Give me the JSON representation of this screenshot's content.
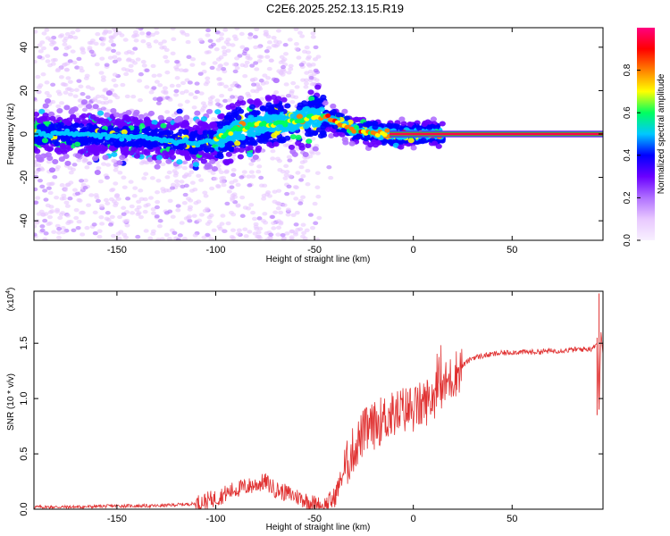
{
  "title": "C2E6.2025.252.13.15.R19",
  "chart_data": [
    {
      "type": "heatmap",
      "title": "C2E6.2025.252.13.15.R19",
      "xlabel": "Height of straight line (km)",
      "ylabel": "Frequency (Hz)",
      "xlim": [
        -192,
        96
      ],
      "ylim": [
        -49,
        49
      ],
      "xticks": [
        -150,
        -100,
        -50,
        0,
        50
      ],
      "yticks": [
        -40,
        -20,
        0,
        20,
        40
      ],
      "colorbar": {
        "label": "Normalized spectral amplitude",
        "ticks": [
          "0.0",
          "0.2",
          "0.4",
          "0.6",
          "0.8"
        ],
        "range": [
          0,
          1
        ],
        "colors": [
          "#f8f0ff",
          "#e8c8ff",
          "#b070ff",
          "#6a00ff",
          "#0000ff",
          "#00c8ff",
          "#00ff60",
          "#ffff00",
          "#ff8000",
          "#ff0000",
          "#ff0080"
        ]
      },
      "ridge": {
        "height_km": [
          -192,
          -170,
          -150,
          -130,
          -110,
          -100,
          -90,
          -80,
          -70,
          -60,
          -50,
          -45,
          -40,
          -35,
          -30,
          -25,
          -20,
          -15,
          -10,
          0,
          10,
          20,
          50,
          96
        ],
        "freq_hz": [
          0,
          0,
          -1,
          -2,
          -4,
          -3,
          2,
          4,
          5,
          6,
          8,
          8,
          6,
          4,
          2,
          1,
          1,
          0,
          0,
          0,
          0,
          0,
          0,
          0
        ]
      }
    },
    {
      "type": "line",
      "xlabel": "Height of straight line (km)",
      "ylabel": "SNR (10 * v/v)",
      "exponent_label": "(x10",
      "exponent": "4",
      "xlim": [
        -192,
        96
      ],
      "ylim": [
        0,
        1.97
      ],
      "xticks": [
        -150,
        -100,
        -50,
        0,
        50
      ],
      "yticks": [
        "0.0",
        "0.5",
        "1.0",
        "1.5"
      ],
      "series": [
        {
          "name": "SNR",
          "color": "#e03030",
          "x": [
            -192,
            -170,
            -150,
            -130,
            -110,
            -100,
            -90,
            -80,
            -75,
            -70,
            -60,
            -50,
            -45,
            -40,
            -35,
            -30,
            -25,
            -20,
            -15,
            -10,
            -5,
            0,
            5,
            10,
            15,
            20,
            25,
            30,
            40,
            50,
            60,
            70,
            80,
            90,
            93,
            94,
            95,
            96
          ],
          "y": [
            0.02,
            0.02,
            0.03,
            0.03,
            0.05,
            0.1,
            0.18,
            0.22,
            0.25,
            0.18,
            0.12,
            0.05,
            0.02,
            0.1,
            0.35,
            0.55,
            0.7,
            0.75,
            0.82,
            0.85,
            0.9,
            0.9,
            0.95,
            1.02,
            1.1,
            1.2,
            1.3,
            1.37,
            1.4,
            1.42,
            1.42,
            1.43,
            1.44,
            1.45,
            1.5,
            0.9,
            1.6,
            1.4
          ]
        }
      ]
    }
  ]
}
